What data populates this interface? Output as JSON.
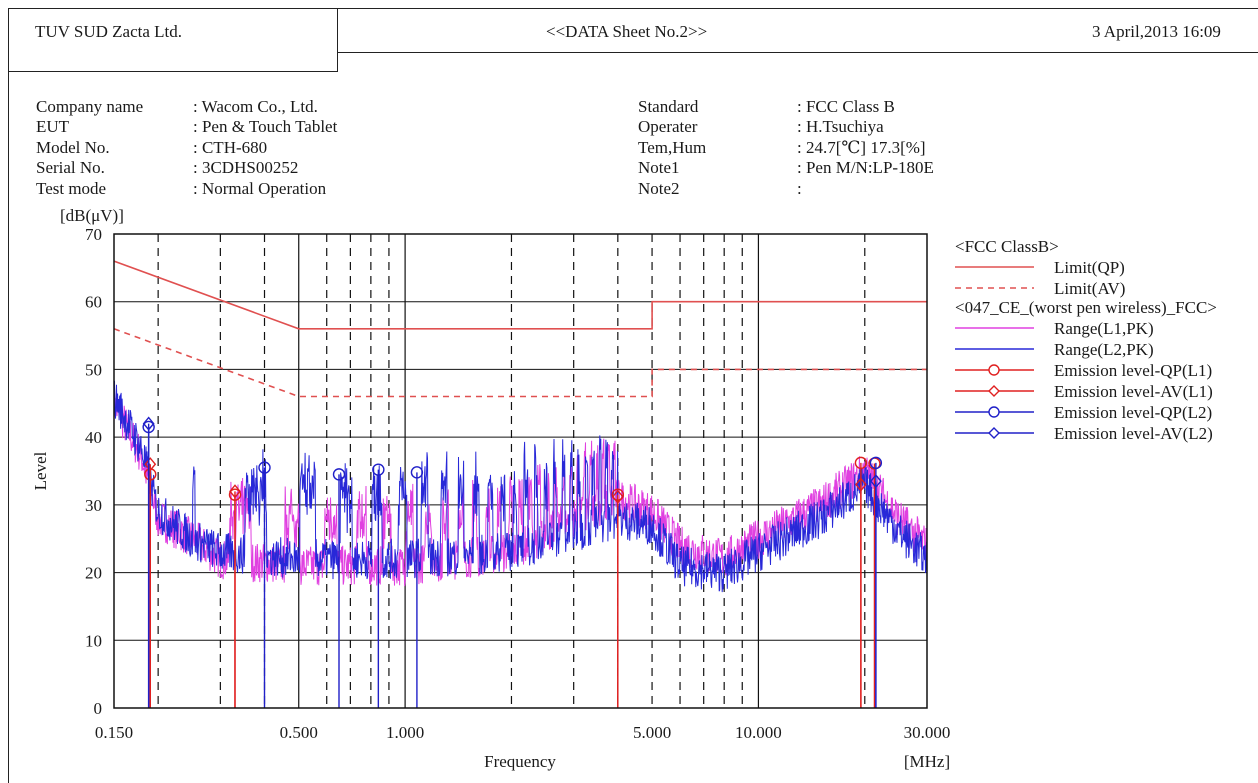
{
  "header": {
    "company": "TUV SUD Zacta Ltd.",
    "sheet_title": "<<DATA Sheet No.2>>",
    "datetime": "3 April,2013 16:09"
  },
  "info_left": [
    {
      "label": "Company name",
      "value": ": Wacom Co., Ltd."
    },
    {
      "label": "EUT",
      "value": ": Pen & Touch Tablet"
    },
    {
      "label": "Model No.",
      "value": ": CTH-680"
    },
    {
      "label": "Serial No.",
      "value": ": 3CDHS00252"
    },
    {
      "label": "Test mode",
      "value": ": Normal Operation"
    }
  ],
  "info_right": [
    {
      "label": "Standard",
      "value": ": FCC Class B"
    },
    {
      "label": "Operater",
      "value": ": H.Tsuchiya"
    },
    {
      "label": "Tem,Hum",
      "value": ": 24.7[℃] 17.3[%]"
    },
    {
      "label": "Note1",
      "value": ": Pen M/N:LP-180E"
    },
    {
      "label": "Note2",
      "value": ":"
    }
  ],
  "chart_data": {
    "type": "line",
    "xscale": "log",
    "xlim": [
      0.15,
      30
    ],
    "ylim": [
      0,
      70
    ],
    "ylabel": "Level",
    "yunit": "[dB(μV)]",
    "xlabel": "Frequency",
    "xunit": "[MHz]",
    "xticks": [
      "0.150",
      "0.500",
      "1.000",
      "5.000",
      "10.000",
      "30.000"
    ],
    "yticks": [
      "0",
      "10",
      "20",
      "30",
      "40",
      "50",
      "60",
      "70"
    ],
    "legend_group1": "<FCC ClassB>",
    "legend_group2": "<047_CE_(worst pen wireless)_FCC>",
    "legend_position": "right",
    "colors": {
      "limit": "#e05050",
      "l1": "#e040e0",
      "l2": "#2828d8",
      "emission_l1": "#e02020",
      "emission_l2": "#2020c8"
    },
    "series": [
      {
        "name": "Limit(QP)",
        "style": "solid",
        "x": [
          0.15,
          0.5,
          0.5,
          5,
          5,
          30
        ],
        "y": [
          66,
          56,
          56,
          56,
          60,
          60
        ]
      },
      {
        "name": "Limit(AV)",
        "style": "dashed",
        "x": [
          0.15,
          0.5,
          0.5,
          5,
          5,
          30
        ],
        "y": [
          56,
          46,
          46,
          46,
          50,
          50
        ]
      },
      {
        "name": "Range(L1,PK)",
        "envelope_x": [
          0.15,
          0.18,
          0.2,
          0.25,
          0.3,
          0.5,
          1,
          2,
          3,
          4,
          5,
          6,
          8,
          10,
          15,
          20,
          25,
          30
        ],
        "envelope_y": [
          45,
          37,
          28,
          25,
          22,
          21,
          21,
          23,
          28,
          31,
          29,
          24,
          22,
          25,
          30,
          35,
          28,
          24
        ]
      },
      {
        "name": "Range(L2,PK)",
        "envelope_x": [
          0.15,
          0.18,
          0.2,
          0.25,
          0.3,
          0.5,
          1,
          2,
          3,
          4,
          5,
          6,
          8,
          10,
          15,
          20,
          25,
          30
        ],
        "envelope_y": [
          46,
          38,
          29,
          25,
          23,
          22,
          22,
          23,
          26,
          28,
          27,
          21,
          20,
          23,
          28,
          33,
          26,
          22
        ]
      },
      {
        "name": "Emission level-QP(L1)",
        "marker": "circle",
        "x": [
          0.19,
          0.33,
          4.0,
          19.5,
          21.3
        ],
        "y": [
          34.5,
          31.5,
          31.5,
          36.2,
          36.1
        ]
      },
      {
        "name": "Emission level-AV(L1)",
        "marker": "diamond",
        "x": [
          0.19,
          0.33,
          4.0,
          19.5
        ],
        "y": [
          36,
          32,
          31.2,
          33
        ]
      },
      {
        "name": "Emission level-QP(L2)",
        "marker": "circle",
        "x": [
          0.188,
          0.4,
          0.65,
          0.84,
          1.08,
          21.5
        ],
        "y": [
          41.5,
          35.5,
          34.5,
          35.2,
          34.8,
          36.2
        ]
      },
      {
        "name": "Emission level-AV(L2)",
        "marker": "diamond",
        "x": [
          0.188,
          21.5
        ],
        "y": [
          42,
          33.5
        ]
      }
    ]
  }
}
